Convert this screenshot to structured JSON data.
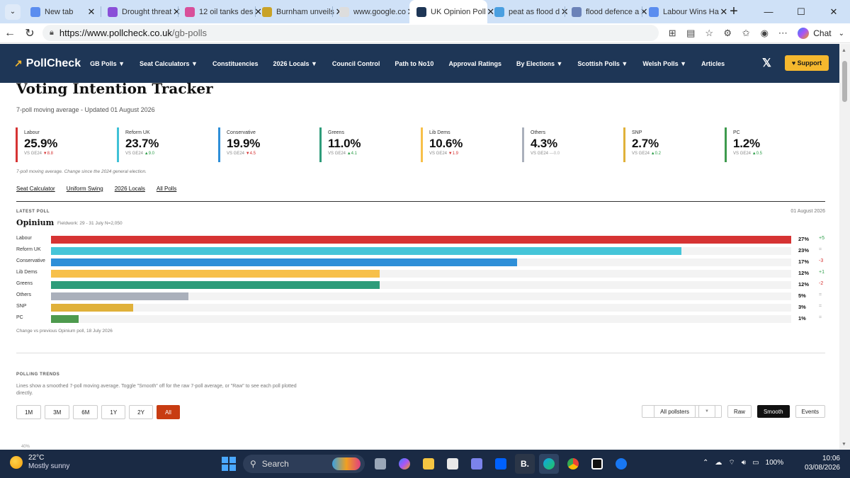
{
  "browser": {
    "tabs": [
      {
        "title": "New tab",
        "color": "#5b8def",
        "active": false
      },
      {
        "title": "Drought threat",
        "color": "#8a4fd8",
        "active": false
      },
      {
        "title": "12 oil tanks des",
        "color": "#d84f9a",
        "active": false
      },
      {
        "title": "Burnham unveils",
        "color": "#c9a227",
        "active": false
      },
      {
        "title": "www.google.co",
        "color": "#dddddd",
        "active": false
      },
      {
        "title": "UK Opinion Poll",
        "color": "#1e3656",
        "active": true
      },
      {
        "title": "peat as flood d",
        "color": "#4a9fe0",
        "active": false
      },
      {
        "title": "flood defence a",
        "color": "#6b82b8",
        "active": false
      },
      {
        "title": "Labour Wins Ha",
        "color": "#5b8def",
        "active": false
      }
    ],
    "url_host": "https://www.pollcheck.co.uk",
    "url_path": "/gb-polls",
    "chat_label": "Chat"
  },
  "site": {
    "logo": "PollCheck",
    "nav": [
      "GB Polls ▼",
      "Seat Calculators ▼",
      "Constituencies",
      "2026 Locals ▼",
      "Council Control",
      "Path to No10",
      "Approval Ratings",
      "By Elections ▼",
      "Scottish Polls ▼",
      "Welsh Polls ▼",
      "Articles"
    ],
    "support_label": "♥ Support"
  },
  "page": {
    "title": "Voting Intention Tracker",
    "subtitle": "7-poll moving average - Updated 01 August 2026",
    "cards": [
      {
        "party": "Labour",
        "value": "25.9%",
        "dir": "dn",
        "arrow": "▼",
        "change": "8.8",
        "color": "#d63333"
      },
      {
        "party": "Reform UK",
        "value": "23.7%",
        "dir": "up",
        "arrow": "▲",
        "change": "9.0",
        "color": "#3fc1d6"
      },
      {
        "party": "Conservative",
        "value": "19.9%",
        "dir": "dn",
        "arrow": "▼",
        "change": "4.5",
        "color": "#2e8fd8"
      },
      {
        "party": "Greens",
        "value": "11.0%",
        "dir": "up",
        "arrow": "▲",
        "change": "4.1",
        "color": "#2e9c7a"
      },
      {
        "party": "Lib Dems",
        "value": "10.6%",
        "dir": "dn",
        "arrow": "▼",
        "change": "1.9",
        "color": "#f7c04a"
      },
      {
        "party": "Others",
        "value": "4.3%",
        "dir": "eq",
        "arrow": "—",
        "change": "0.0",
        "color": "#aab0bb"
      },
      {
        "party": "SNP",
        "value": "2.7%",
        "dir": "up",
        "arrow": "▲",
        "change": "0.2",
        "color": "#e0b13a"
      },
      {
        "party": "PC",
        "value": "1.2%",
        "dir": "up",
        "arrow": "▲",
        "change": "0.5",
        "color": "#3e9a4e"
      }
    ],
    "vs_label": "VS GE24",
    "cards_note": "7-poll moving average. Change since the 2024 general election.",
    "links": [
      "Seat Calculator",
      "Uniform Swing",
      "2026 Locals",
      "All Polls"
    ],
    "latest_label": "LATEST POLL",
    "latest_date": "01 August 2026",
    "pollster": "Opinium",
    "fieldwork": "Fieldwork: 29 - 31 July   N=2,050",
    "poll_rows": [
      {
        "party": "Labour",
        "pct": 27,
        "label": "27%",
        "change": "+5",
        "dir": "up",
        "color": "#d63333"
      },
      {
        "party": "Reform UK",
        "pct": 23,
        "label": "23%",
        "change": "=",
        "dir": "eq",
        "color": "#45c5d8"
      },
      {
        "party": "Conservative",
        "pct": 17,
        "label": "17%",
        "change": "-3",
        "dir": "dn",
        "color": "#2e8fd8"
      },
      {
        "party": "Lib Dems",
        "pct": 12,
        "label": "12%",
        "change": "+1",
        "dir": "up",
        "color": "#f7c04a"
      },
      {
        "party": "Greens",
        "pct": 12,
        "label": "12%",
        "change": "-2",
        "dir": "dn",
        "color": "#2e9c7a"
      },
      {
        "party": "Others",
        "pct": 5,
        "label": "5%",
        "change": "=",
        "dir": "eq",
        "color": "#aab0bb"
      },
      {
        "party": "SNP",
        "pct": 3,
        "label": "3%",
        "change": "=",
        "dir": "eq",
        "color": "#e0b13a"
      },
      {
        "party": "PC",
        "pct": 1,
        "label": "1%",
        "change": "=",
        "dir": "eq",
        "color": "#4e9a4e"
      }
    ],
    "poll_note": "Change vs previous Opinium poll, 18 July 2026",
    "trends_label": "POLLING TRENDS",
    "trends_desc": "Lines show a smoothed 7-poll moving average. Toggle \"Smooth\" off for the raw 7-poll average, or \"Raw\" to see each poll plotted directly.",
    "ranges": [
      "1M",
      "3M",
      "6M",
      "1Y",
      "2Y",
      "All"
    ],
    "active_range": "All",
    "pollster_select": "All pollsters",
    "mode_buttons": [
      "Raw",
      "Smooth",
      "Events"
    ],
    "active_mode": "Smooth",
    "y_tick": "40%"
  },
  "taskbar": {
    "temp": "22°C",
    "weather": "Mostly sunny",
    "search": "Search",
    "battery": "100%",
    "time": "10:06",
    "date": "03/08/2026"
  }
}
